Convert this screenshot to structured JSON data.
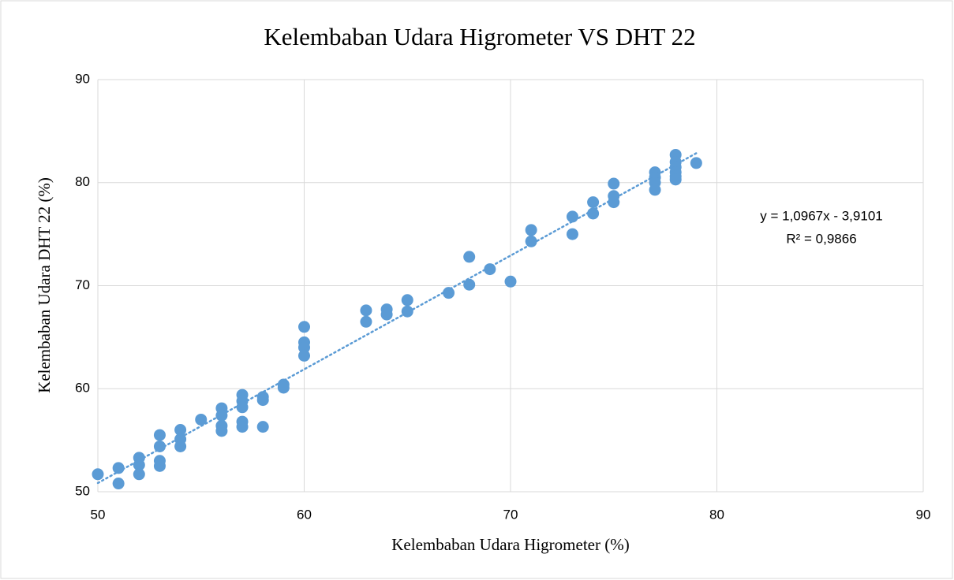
{
  "chart_data": {
    "type": "scatter",
    "title": "Kelembaban Udara Higrometer VS DHT 22",
    "xlabel": "Kelembaban Udara Higrometer (%)",
    "ylabel": "Kelembaban Udara DHT 22 (%)",
    "annotations": [
      "y = 1,0967x - 3,9101",
      "R² = 0,9866"
    ],
    "color": "#5b9bd5",
    "trendline": true,
    "grid": true,
    "xlim": [
      50,
      90
    ],
    "xticks": [
      50,
      60,
      70,
      80,
      90
    ],
    "ylim": [
      50,
      90
    ],
    "yticks": [
      50,
      60,
      70,
      80,
      90
    ],
    "x": [
      50,
      51,
      51,
      52,
      52,
      52,
      53,
      53,
      53,
      53,
      54,
      54,
      54,
      55,
      56,
      56,
      56,
      56,
      57,
      57,
      57,
      57,
      57,
      58,
      58,
      58,
      59,
      59,
      60,
      60,
      60,
      60,
      63,
      63,
      64,
      64,
      65,
      65,
      67,
      68,
      68,
      69,
      70,
      71,
      71,
      73,
      73,
      74,
      74,
      75,
      75,
      75,
      77,
      77,
      77,
      77,
      78,
      78,
      78,
      78,
      78,
      78,
      79
    ],
    "values": [
      51.7,
      52.3,
      50.8,
      53.3,
      52.6,
      51.7,
      55.5,
      54.4,
      53.0,
      52.5,
      56.0,
      55.1,
      54.4,
      57.0,
      58.1,
      57.4,
      56.4,
      55.9,
      59.4,
      58.8,
      58.2,
      56.8,
      56.3,
      59.2,
      58.9,
      56.3,
      60.4,
      60.1,
      66.0,
      64.5,
      64.0,
      63.2,
      67.6,
      66.5,
      67.7,
      67.2,
      68.6,
      67.5,
      69.3,
      72.8,
      70.1,
      71.6,
      70.4,
      75.4,
      74.3,
      76.7,
      75.0,
      78.1,
      77.0,
      79.9,
      78.7,
      78.1,
      81.0,
      80.5,
      80.0,
      79.3,
      82.7,
      82.0,
      81.5,
      81.0,
      80.6,
      80.3,
      81.9
    ]
  }
}
